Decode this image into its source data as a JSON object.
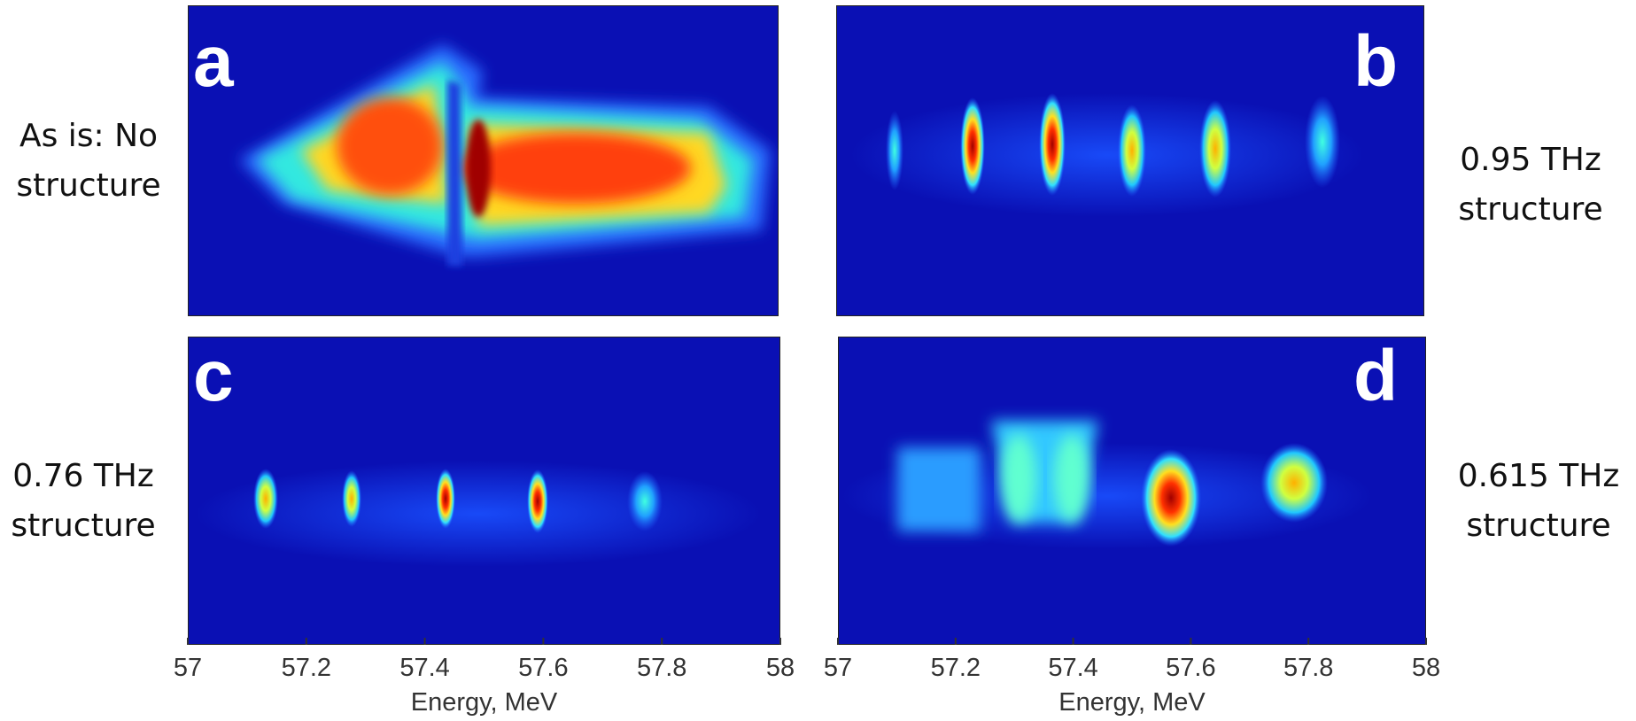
{
  "panels": [
    {
      "letter": "a",
      "caption": [
        "As is: No",
        "structure"
      ]
    },
    {
      "letter": "b",
      "caption": [
        "0.95 THz",
        "structure"
      ]
    },
    {
      "letter": "c",
      "caption": [
        "0.76 THz",
        "structure"
      ]
    },
    {
      "letter": "d",
      "caption": [
        "0.615 THz",
        "structure"
      ]
    }
  ],
  "axes": [
    {
      "xlim": [
        57,
        58
      ],
      "xticks": [
        57,
        57.2,
        57.4,
        57.6,
        57.8,
        58
      ],
      "xlabel": "Energy, MeV"
    },
    {
      "xlim": [
        57,
        58
      ],
      "xticks": [
        57,
        57.2,
        57.4,
        57.6,
        57.8,
        58
      ],
      "xlabel": "Energy, MeV"
    }
  ]
}
